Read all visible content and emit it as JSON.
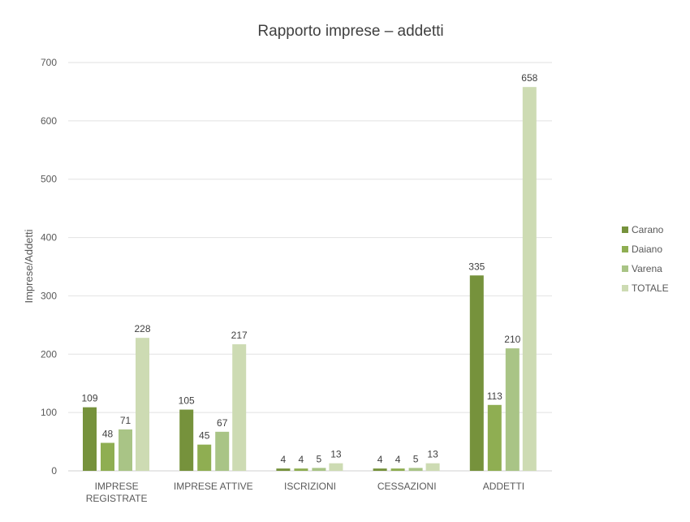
{
  "chart_data": {
    "type": "bar",
    "title": "Rapporto imprese – addetti",
    "xlabel": "",
    "ylabel": "Imprese/Addetti",
    "ylim": [
      0,
      700
    ],
    "yticks": [
      0,
      100,
      200,
      300,
      400,
      500,
      600,
      700
    ],
    "grid": true,
    "legend_position": "right",
    "categories": [
      "IMPRESE REGISTRATE",
      "IMPRESE ATTIVE",
      "ISCRIZIONI",
      "CESSAZIONI",
      "ADDETTI"
    ],
    "series": [
      {
        "name": "Carano",
        "color": "#76923c",
        "values": [
          109,
          105,
          4,
          4,
          335
        ]
      },
      {
        "name": "Daiano",
        "color": "#8fae52",
        "values": [
          48,
          45,
          4,
          4,
          113
        ]
      },
      {
        "name": "Varena",
        "color": "#a9c486",
        "values": [
          71,
          67,
          5,
          5,
          210
        ]
      },
      {
        "name": "TOTALE",
        "color": "#cddbb3",
        "values": [
          228,
          217,
          13,
          13,
          658
        ]
      }
    ]
  }
}
